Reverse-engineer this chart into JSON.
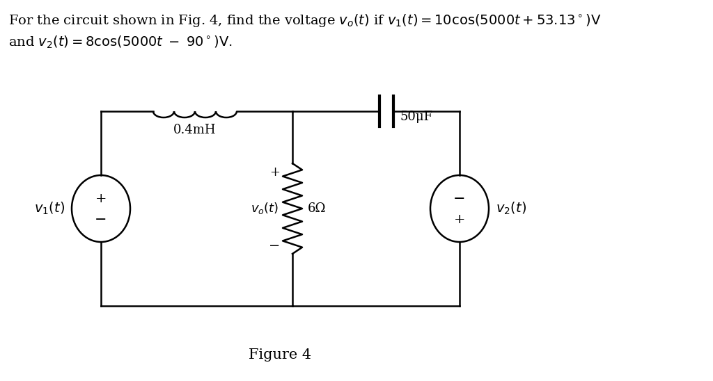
{
  "background_color": "#ffffff",
  "line_color": "#000000",
  "inductor_label": "0.4mH",
  "capacitor_label": "50μF",
  "resistor_label": "6Ω",
  "v1_label": "$v_1(t)$",
  "v2_label": "$v_2(t)$",
  "vo_label": "$v_o(t)$",
  "figure_label": "Figure 4",
  "title_line1": "For the circuit shown in Fig. 4, find the voltage $v_o(t)$ if $v_1(t) = 10\\cos(5000t + 53.13^\\circ)\\mathrm{V}$",
  "title_line2": "and $v_2(t) = 8\\cos(5000t\\;-\\;90^\\circ)\\mathrm{V}$.",
  "font_size": 14
}
